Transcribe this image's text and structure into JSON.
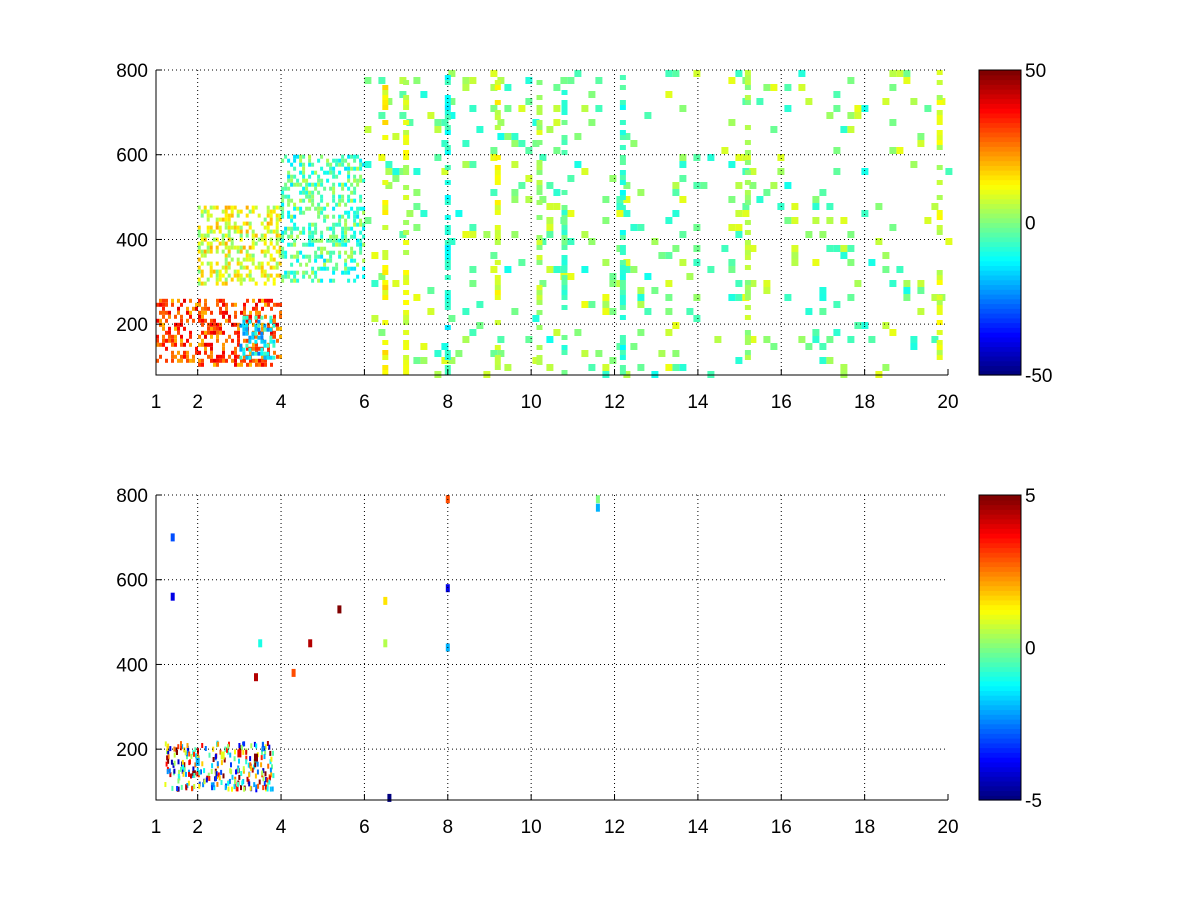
{
  "chart_data": [
    {
      "type": "heatmap",
      "title": "",
      "xlabel": "",
      "ylabel": "",
      "xlim": [
        1,
        20
      ],
      "ylim": [
        80,
        800
      ],
      "x_ticks": [
        1,
        2,
        4,
        6,
        8,
        10,
        12,
        14,
        16,
        18,
        20
      ],
      "y_ticks": [
        200,
        400,
        600,
        800
      ],
      "grid": true,
      "colormap": "jet",
      "clim": [
        -50,
        50
      ],
      "colorbar_ticks": [
        -50,
        0,
        50
      ],
      "colorbar_placement": "right",
      "cell_values_approx": [
        {
          "x": [
            1.0,
            4.0
          ],
          "y": [
            100,
            260
          ],
          "value": 30,
          "note_region": "hot"
        },
        {
          "x": [
            3.0,
            3.8
          ],
          "y": [
            120,
            220
          ],
          "value": -15
        },
        {
          "x": [
            2.0,
            4.0
          ],
          "y": [
            300,
            480
          ],
          "value": 10
        },
        {
          "x": [
            4.0,
            6.0
          ],
          "y": [
            300,
            600
          ],
          "value": -5
        },
        {
          "x": [
            6.0,
            20.0
          ],
          "y": [
            80,
            800
          ],
          "value": 0
        }
      ],
      "vertical_streaks": [
        {
          "x": 6.5,
          "value": 12
        },
        {
          "x": 7.0,
          "value": 8
        },
        {
          "x": 8.0,
          "value": -10
        },
        {
          "x": 9.2,
          "value": 10
        },
        {
          "x": 10.2,
          "value": 5
        },
        {
          "x": 10.8,
          "value": -5
        },
        {
          "x": 12.2,
          "value": -8
        },
        {
          "x": 15.2,
          "value": 4
        },
        {
          "x": 19.8,
          "value": 8
        }
      ]
    },
    {
      "type": "heatmap",
      "title": "",
      "xlabel": "",
      "ylabel": "",
      "xlim": [
        1,
        20
      ],
      "ylim": [
        80,
        800
      ],
      "x_ticks": [
        1,
        2,
        4,
        6,
        8,
        10,
        12,
        14,
        16,
        18,
        20
      ],
      "y_ticks": [
        200,
        400,
        600,
        800
      ],
      "grid": true,
      "colormap": "jet",
      "clim": [
        -5,
        5
      ],
      "colorbar_ticks": [
        -5,
        0,
        5
      ],
      "colorbar_placement": "right",
      "sparse_points_approx": [
        {
          "x": 1.4,
          "y": 560,
          "value": -4
        },
        {
          "x": 1.4,
          "y": 700,
          "value": -3
        },
        {
          "x": 2.0,
          "y": 170,
          "value": -2
        },
        {
          "x": 2.6,
          "y": 185,
          "value": 1
        },
        {
          "x": 3.0,
          "y": 190,
          "value": 4
        },
        {
          "x": 3.4,
          "y": 180,
          "value": 5
        },
        {
          "x": 3.4,
          "y": 370,
          "value": 4.5
        },
        {
          "x": 3.5,
          "y": 450,
          "value": -1
        },
        {
          "x": 4.3,
          "y": 380,
          "value": 3
        },
        {
          "x": 4.7,
          "y": 450,
          "value": 4.5
        },
        {
          "x": 5.4,
          "y": 530,
          "value": 5
        },
        {
          "x": 6.5,
          "y": 550,
          "value": 1.5
        },
        {
          "x": 6.5,
          "y": 450,
          "value": 0.5
        },
        {
          "x": 6.6,
          "y": 85,
          "value": -5
        },
        {
          "x": 8.0,
          "y": 790,
          "value": 3
        },
        {
          "x": 8.0,
          "y": 580,
          "value": -4
        },
        {
          "x": 8.0,
          "y": 440,
          "value": -2
        },
        {
          "x": 11.6,
          "y": 790,
          "value": 0
        },
        {
          "x": 11.6,
          "y": 770,
          "value": -2
        }
      ]
    }
  ]
}
